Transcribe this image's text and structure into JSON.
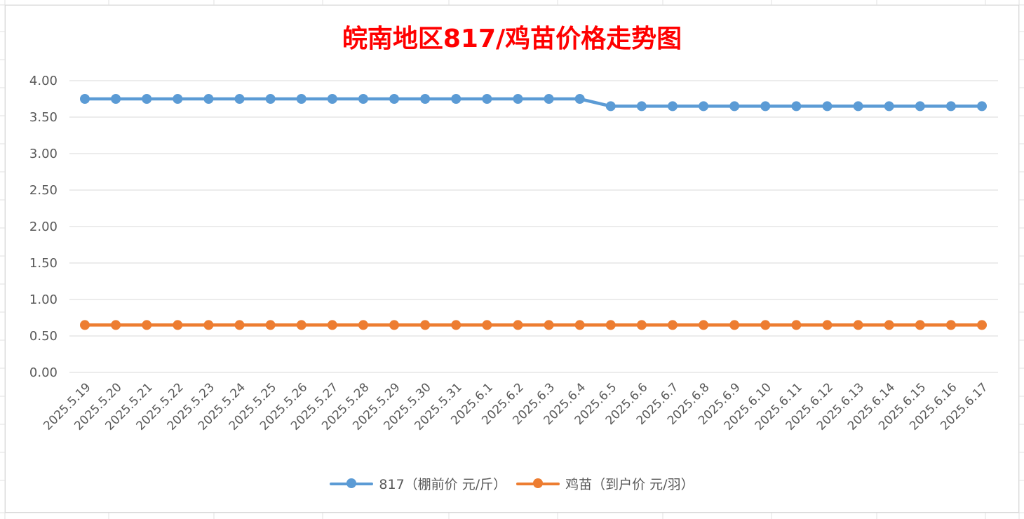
{
  "chart_data": {
    "type": "line",
    "title": "皖南地区817/鸡苗价格走势图",
    "categories": [
      "2025.5.19",
      "2025.5.20",
      "2025.5.21",
      "2025.5.22",
      "2025.5.23",
      "2025.5.24",
      "2025.5.25",
      "2025.5.26",
      "2025.5.27",
      "2025.5.28",
      "2025.5.29",
      "2025.5.30",
      "2025.5.31",
      "2025.6.1",
      "2025.6.2",
      "2025.6.3",
      "2025.6.4",
      "2025.6.5",
      "2025.6.6",
      "2025.6.7",
      "2025.6.8",
      "2025.6.9",
      "2025.6.10",
      "2025.6.11",
      "2025.6.12",
      "2025.6.13",
      "2025.6.14",
      "2025.6.15",
      "2025.6.16",
      "2025.6.17"
    ],
    "series": [
      {
        "name": "817（棚前价 元/斤）",
        "color": "#5b9bd5",
        "values": [
          3.75,
          3.75,
          3.75,
          3.75,
          3.75,
          3.75,
          3.75,
          3.75,
          3.75,
          3.75,
          3.75,
          3.75,
          3.75,
          3.75,
          3.75,
          3.75,
          3.75,
          3.65,
          3.65,
          3.65,
          3.65,
          3.65,
          3.65,
          3.65,
          3.65,
          3.65,
          3.65,
          3.65,
          3.65,
          3.65
        ]
      },
      {
        "name": "鸡苗（到户价 元/羽）",
        "color": "#ed7d31",
        "values": [
          0.65,
          0.65,
          0.65,
          0.65,
          0.65,
          0.65,
          0.65,
          0.65,
          0.65,
          0.65,
          0.65,
          0.65,
          0.65,
          0.65,
          0.65,
          0.65,
          0.65,
          0.65,
          0.65,
          0.65,
          0.65,
          0.65,
          0.65,
          0.65,
          0.65,
          0.65,
          0.65,
          0.65,
          0.65,
          0.65
        ]
      }
    ],
    "yticks": [
      "0.00",
      "0.50",
      "1.00",
      "1.50",
      "2.00",
      "2.50",
      "3.00",
      "3.50",
      "4.00"
    ],
    "ylim": [
      0,
      4
    ],
    "grid": true,
    "legend_position": "bottom",
    "title_color": "#ff0000"
  }
}
